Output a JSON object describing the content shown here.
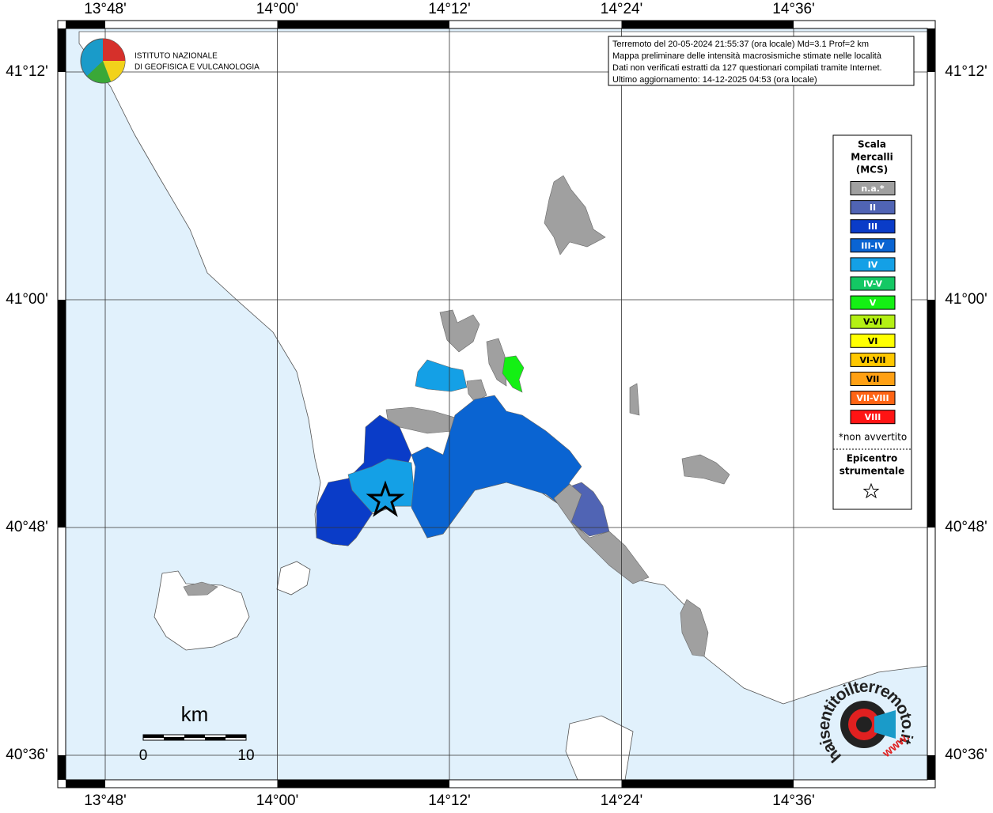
{
  "header": {
    "info": [
      "Terremoto del 20-05-2024 21:55:37 (ora locale) Md=3.1 Prof=2 km",
      "Mappa preliminare delle intensità macrosismiche stimate nelle località",
      "Dati non verificati estratti da 127 questionari compilati tramite Internet.",
      "Ultimo aggiornamento: 14-12-2025 04:53 (ora locale)"
    ]
  },
  "logo": [
    "ISTITUTO NAZIONALE",
    "DI GEOFISICA E VULCANOLOGIA"
  ],
  "axes": {
    "lon_labels": [
      "13°48'",
      "14°00'",
      "14°12'",
      "14°24'",
      "14°36'"
    ],
    "lat_labels": [
      "41°12'",
      "41°00'",
      "40°48'",
      "40°36'"
    ]
  },
  "legend": {
    "title": [
      "Scala",
      "Mercalli",
      "(MCS)"
    ],
    "classes": [
      {
        "label": "n.a.*",
        "color": "#a0a0a0"
      },
      {
        "label": "II",
        "color": "#5064b4"
      },
      {
        "label": "III",
        "color": "#0a3cc8"
      },
      {
        "label": "III-IV",
        "color": "#0a64d2"
      },
      {
        "label": "IV",
        "color": "#14a0e6"
      },
      {
        "label": "IV-V",
        "color": "#14c864"
      },
      {
        "label": "V",
        "color": "#14f014"
      },
      {
        "label": "V-VI",
        "color": "#b4f014"
      },
      {
        "label": "VI",
        "color": "#ffff00"
      },
      {
        "label": "VI-VII",
        "color": "#ffc800"
      },
      {
        "label": "VII",
        "color": "#ffa014"
      },
      {
        "label": "VII-VIII",
        "color": "#ff6414"
      },
      {
        "label": "VIII",
        "color": "#ff1414"
      }
    ],
    "note": "*non avvertito",
    "epicenter": [
      "Epicentro",
      "strumentale"
    ]
  },
  "scalebar": {
    "unit": "km",
    "labels": [
      "0",
      "10"
    ]
  },
  "watermark": [
    "haisentitoilterremoto.it",
    "www."
  ]
}
